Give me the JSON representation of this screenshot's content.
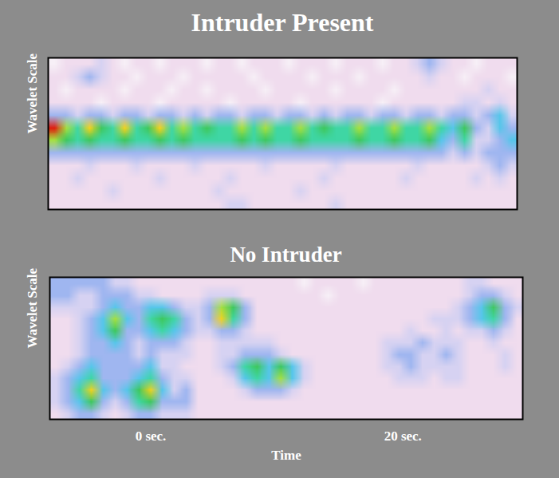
{
  "chart_data": [
    {
      "type": "heatmap",
      "title": "Intruder Present",
      "y_label": "Wavelet Scale",
      "xlim": [
        -8,
        29.5
      ],
      "tick_labels": false,
      "zlim": [
        0,
        9
      ],
      "cells": [
        [
          0,
          1,
          1,
          1,
          2,
          1,
          0,
          1,
          1,
          0,
          1,
          1,
          1,
          0,
          1,
          1,
          0,
          1,
          1,
          1,
          0,
          1,
          1,
          1,
          0,
          1,
          1,
          1,
          0,
          1,
          1,
          2,
          3,
          2,
          1,
          1,
          0,
          1,
          1,
          1
        ],
        [
          1,
          1,
          2,
          3,
          2,
          1,
          1,
          0,
          1,
          1,
          1,
          0,
          1,
          1,
          1,
          1,
          1,
          0,
          1,
          1,
          1,
          1,
          0,
          1,
          1,
          1,
          0,
          1,
          1,
          1,
          1,
          1,
          2,
          1,
          1,
          0,
          1,
          1,
          1,
          0
        ],
        [
          1,
          0,
          1,
          1,
          1,
          1,
          0,
          1,
          1,
          1,
          0,
          1,
          1,
          0,
          1,
          1,
          1,
          1,
          0,
          1,
          1,
          1,
          1,
          1,
          0,
          1,
          1,
          1,
          1,
          0,
          1,
          1,
          1,
          1,
          1,
          1,
          1,
          2,
          1,
          1
        ],
        [
          1,
          1,
          1,
          1,
          0,
          1,
          1,
          1,
          1,
          0,
          1,
          1,
          1,
          1,
          1,
          0,
          1,
          1,
          1,
          1,
          1,
          0,
          1,
          1,
          1,
          1,
          1,
          1,
          0,
          1,
          1,
          1,
          1,
          1,
          1,
          2,
          2,
          1,
          2,
          1
        ],
        [
          3,
          3,
          2,
          3,
          3,
          2,
          3,
          3,
          2,
          3,
          3,
          2,
          3,
          2,
          3,
          3,
          2,
          3,
          3,
          2,
          3,
          3,
          2,
          3,
          2,
          3,
          3,
          2,
          3,
          3,
          2,
          3,
          3,
          2,
          3,
          3,
          2,
          3,
          4,
          2
        ],
        [
          9,
          7,
          5,
          8,
          6,
          5,
          8,
          5,
          6,
          8,
          5,
          7,
          5,
          6,
          5,
          5,
          7,
          5,
          7,
          5,
          5,
          7,
          5,
          6,
          5,
          5,
          7,
          5,
          5,
          7,
          5,
          5,
          7,
          5,
          4,
          6,
          3,
          2,
          4,
          3
        ],
        [
          7,
          6,
          5,
          6,
          5,
          5,
          6,
          5,
          5,
          6,
          5,
          6,
          5,
          5,
          5,
          5,
          6,
          5,
          6,
          5,
          5,
          6,
          5,
          5,
          5,
          5,
          6,
          5,
          5,
          6,
          5,
          5,
          6,
          4,
          3,
          5,
          2,
          2,
          3,
          4
        ],
        [
          3,
          3,
          3,
          3,
          3,
          3,
          3,
          3,
          3,
          3,
          3,
          3,
          3,
          3,
          3,
          3,
          3,
          3,
          3,
          3,
          3,
          3,
          3,
          3,
          3,
          3,
          3,
          3,
          3,
          3,
          3,
          3,
          3,
          3,
          2,
          3,
          2,
          3,
          3,
          3
        ],
        [
          1,
          1,
          1,
          2,
          1,
          1,
          1,
          2,
          1,
          1,
          1,
          1,
          2,
          1,
          1,
          1,
          1,
          1,
          2,
          1,
          1,
          1,
          1,
          1,
          2,
          1,
          1,
          1,
          1,
          1,
          1,
          2,
          1,
          1,
          1,
          1,
          1,
          2,
          3,
          2
        ],
        [
          1,
          1,
          2,
          1,
          1,
          1,
          1,
          1,
          1,
          2,
          1,
          1,
          1,
          1,
          1,
          2,
          1,
          1,
          1,
          1,
          1,
          1,
          1,
          2,
          1,
          1,
          1,
          1,
          1,
          1,
          2,
          1,
          1,
          1,
          1,
          1,
          2,
          1,
          2,
          1
        ],
        [
          1,
          1,
          1,
          1,
          1,
          2,
          1,
          1,
          1,
          1,
          1,
          1,
          1,
          1,
          2,
          1,
          1,
          1,
          1,
          1,
          1,
          2,
          1,
          1,
          1,
          1,
          1,
          1,
          1,
          1,
          1,
          1,
          1,
          1,
          1,
          1,
          1,
          1,
          1,
          1
        ],
        [
          1,
          1,
          1,
          1,
          1,
          1,
          1,
          1,
          1,
          1,
          1,
          1,
          1,
          1,
          1,
          2,
          2,
          1,
          1,
          1,
          1,
          1,
          1,
          1,
          2,
          1,
          1,
          1,
          1,
          1,
          1,
          1,
          1,
          1,
          1,
          1,
          1,
          1,
          1,
          1
        ]
      ]
    },
    {
      "type": "heatmap",
      "title": "No Intruder",
      "y_label": "Wavelet Scale",
      "x_label": "Time",
      "xlim": [
        -8,
        29.5
      ],
      "xticks": [
        {
          "value": 0,
          "label": "0 sec."
        },
        {
          "value": 20,
          "label": "20 sec."
        }
      ],
      "tick_labels": "x",
      "zlim": [
        0,
        9
      ],
      "cells": [
        [
          3,
          3,
          3,
          3,
          3,
          2,
          2,
          1,
          1,
          1,
          1,
          1,
          1,
          1,
          1,
          1,
          1,
          1,
          1,
          1,
          1,
          0,
          1,
          1,
          1,
          1,
          0,
          1,
          1,
          1,
          1,
          1,
          1,
          1,
          1,
          2,
          2,
          1,
          1,
          1
        ],
        [
          3,
          3,
          2,
          2,
          3,
          3,
          3,
          2,
          2,
          1,
          1,
          1,
          1,
          2,
          2,
          2,
          1,
          1,
          1,
          1,
          1,
          1,
          1,
          0,
          1,
          1,
          1,
          1,
          1,
          1,
          1,
          1,
          1,
          1,
          1,
          2,
          3,
          3,
          2,
          1
        ],
        [
          2,
          2,
          2,
          2,
          3,
          4,
          3,
          3,
          4,
          4,
          3,
          2,
          2,
          3,
          7,
          6,
          3,
          1,
          1,
          1,
          1,
          1,
          1,
          1,
          1,
          1,
          1,
          1,
          1,
          1,
          1,
          1,
          1,
          1,
          2,
          3,
          4,
          6,
          3,
          2
        ],
        [
          1,
          1,
          2,
          3,
          4,
          7,
          4,
          3,
          5,
          6,
          5,
          3,
          2,
          3,
          8,
          5,
          3,
          1,
          1,
          1,
          1,
          1,
          1,
          1,
          1,
          1,
          1,
          1,
          1,
          1,
          1,
          1,
          2,
          2,
          2,
          3,
          4,
          5,
          3,
          1
        ],
        [
          1,
          1,
          2,
          3,
          4,
          6,
          3,
          3,
          4,
          5,
          4,
          3,
          2,
          2,
          3,
          3,
          2,
          1,
          1,
          1,
          1,
          1,
          1,
          1,
          1,
          1,
          1,
          1,
          1,
          1,
          2,
          1,
          1,
          2,
          1,
          2,
          2,
          3,
          2,
          1
        ],
        [
          1,
          1,
          2,
          3,
          3,
          4,
          3,
          2,
          3,
          3,
          3,
          2,
          1,
          1,
          2,
          2,
          2,
          2,
          2,
          1,
          1,
          1,
          1,
          1,
          1,
          1,
          1,
          1,
          2,
          2,
          2,
          3,
          2,
          2,
          2,
          1,
          1,
          2,
          1,
          1
        ],
        [
          1,
          1,
          2,
          3,
          3,
          3,
          3,
          2,
          3,
          2,
          2,
          2,
          1,
          1,
          2,
          2,
          3,
          3,
          3,
          2,
          1,
          1,
          1,
          1,
          1,
          1,
          1,
          1,
          2,
          3,
          3,
          2,
          2,
          3,
          2,
          1,
          1,
          1,
          2,
          1
        ],
        [
          1,
          2,
          3,
          4,
          3,
          3,
          3,
          3,
          4,
          2,
          2,
          1,
          1,
          1,
          2,
          3,
          5,
          6,
          4,
          6,
          4,
          2,
          1,
          1,
          1,
          1,
          1,
          1,
          2,
          2,
          3,
          2,
          2,
          2,
          2,
          1,
          1,
          1,
          2,
          1
        ],
        [
          2,
          3,
          4,
          5,
          3,
          3,
          3,
          4,
          5,
          3,
          2,
          2,
          1,
          1,
          1,
          2,
          4,
          5,
          4,
          7,
          4,
          2,
          1,
          1,
          1,
          1,
          1,
          1,
          1,
          2,
          2,
          2,
          1,
          2,
          2,
          1,
          1,
          1,
          1,
          1
        ],
        [
          2,
          3,
          5,
          8,
          4,
          3,
          4,
          6,
          8,
          4,
          2,
          3,
          1,
          1,
          1,
          1,
          2,
          3,
          3,
          3,
          2,
          1,
          1,
          1,
          1,
          1,
          1,
          1,
          1,
          1,
          1,
          1,
          1,
          1,
          1,
          1,
          1,
          1,
          1,
          1
        ],
        [
          2,
          3,
          4,
          6,
          3,
          2,
          3,
          5,
          6,
          3,
          3,
          3,
          1,
          1,
          1,
          1,
          1,
          1,
          1,
          1,
          1,
          1,
          1,
          1,
          1,
          1,
          1,
          1,
          1,
          1,
          1,
          1,
          1,
          1,
          1,
          1,
          1,
          1,
          1,
          1
        ],
        [
          1,
          2,
          3,
          3,
          2,
          1,
          2,
          3,
          3,
          2,
          2,
          2,
          1,
          1,
          1,
          1,
          1,
          1,
          1,
          1,
          1,
          1,
          1,
          1,
          1,
          1,
          1,
          1,
          1,
          1,
          1,
          1,
          1,
          1,
          1,
          1,
          1,
          1,
          1,
          1
        ]
      ]
    }
  ]
}
